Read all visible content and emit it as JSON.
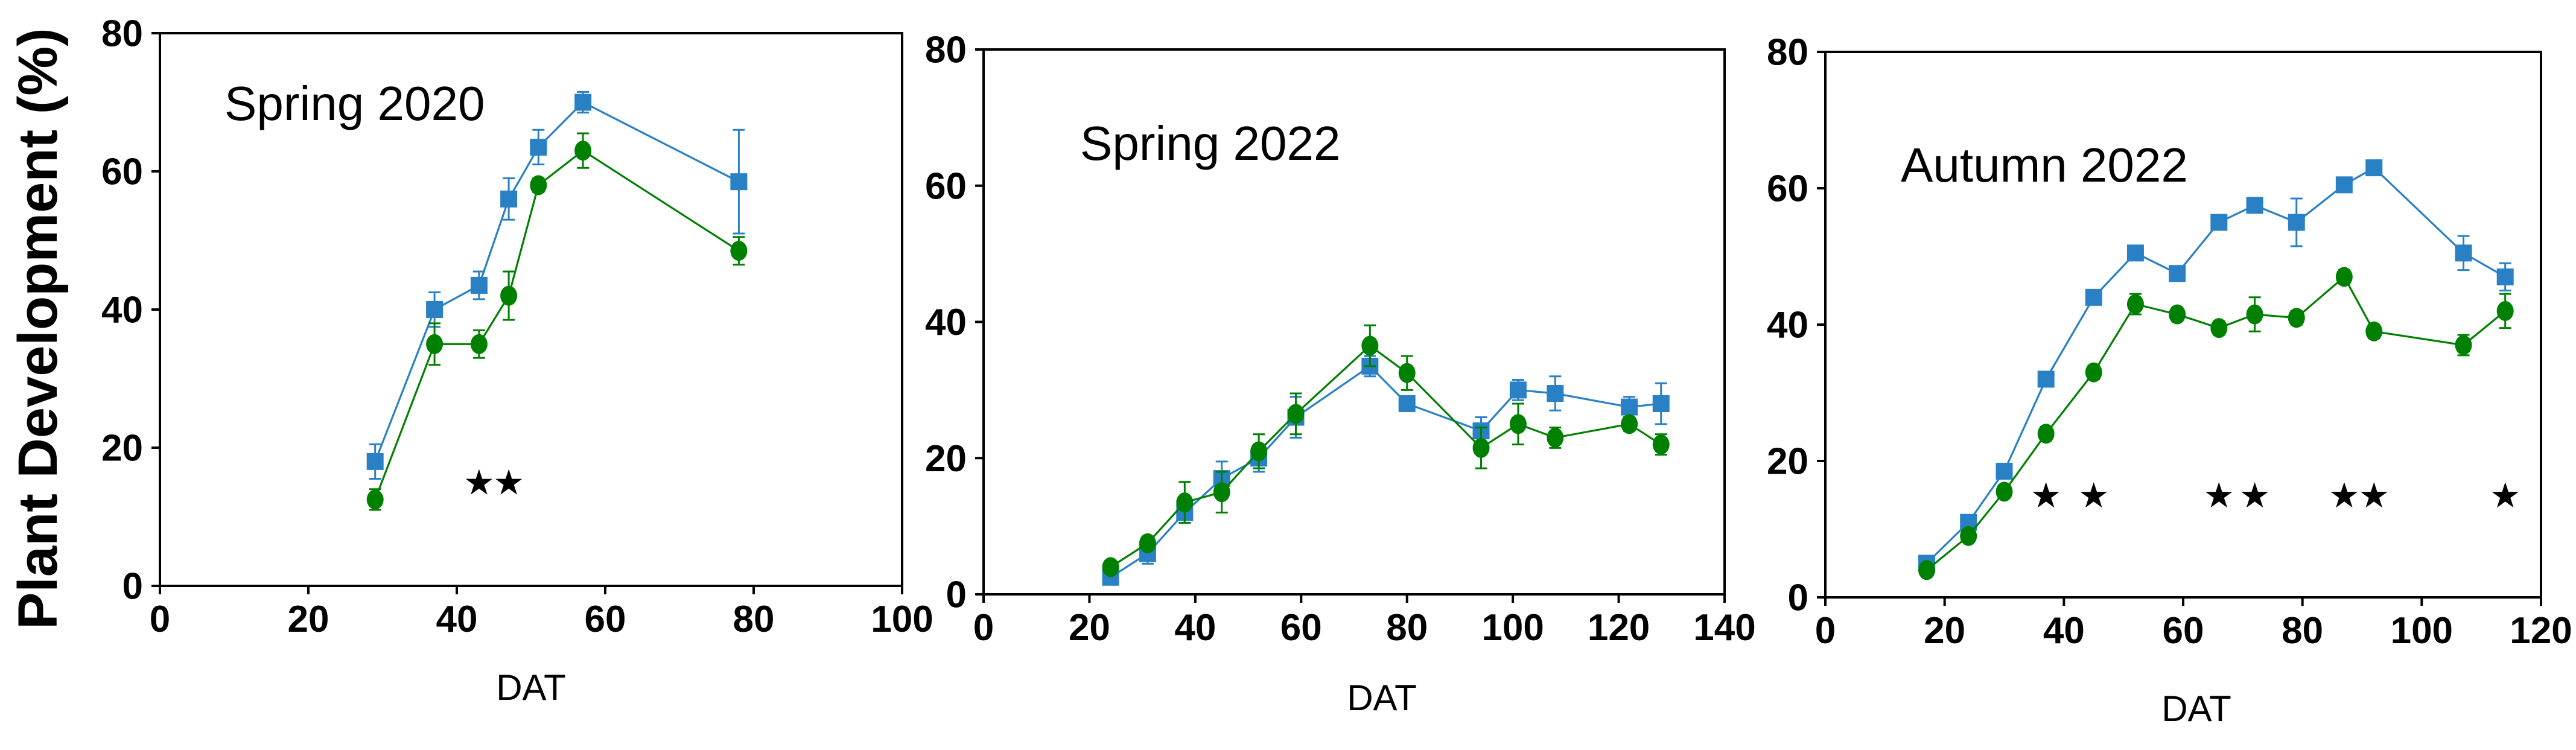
{
  "figure": {
    "y_axis_title": "Plant Development (%)",
    "x_axis_label": "DAT",
    "background_color": "#FFFFFF",
    "axis_color": "#000000",
    "star_symbol": "★",
    "star_color": "#000000",
    "y_ticks": [
      0,
      20,
      40,
      60,
      80
    ],
    "y_range": [
      0,
      80
    ],
    "series_colors": {
      "blue": "#2980C4",
      "green": "#008000"
    }
  },
  "chart_data": [
    {
      "type": "line",
      "title": "Spring 2020",
      "xlabel": "DAT",
      "ylabel": "Plant Development (%)",
      "xlim": [
        0,
        100
      ],
      "ylim": [
        0,
        80
      ],
      "x_ticks": [
        0,
        20,
        40,
        60,
        80,
        100
      ],
      "x": [
        29,
        37,
        43,
        47,
        51,
        57,
        78
      ],
      "series": [
        {
          "name": "blue-squares",
          "marker": "square",
          "color": "#2980C4",
          "values": [
            18,
            40,
            43.5,
            56,
            63.5,
            70,
            58.5
          ],
          "errors": [
            2.5,
            2.5,
            2,
            3,
            2.5,
            1.5,
            7.5
          ]
        },
        {
          "name": "green-circles",
          "marker": "circle",
          "color": "#008000",
          "values": [
            12.5,
            35,
            35,
            42,
            58,
            63,
            48.5
          ],
          "errors": [
            1.5,
            3,
            2,
            3.5,
            1,
            2.5,
            2
          ]
        }
      ],
      "significance_stars": {
        "x_positions": [
          43,
          47
        ],
        "y_position": 15
      }
    },
    {
      "type": "line",
      "title": "Spring 2022",
      "xlabel": "DAT",
      "ylabel": "Plant Development (%)",
      "xlim": [
        0,
        140
      ],
      "ylim": [
        0,
        80
      ],
      "x_ticks": [
        0,
        20,
        40,
        60,
        80,
        100,
        120,
        140
      ],
      "x": [
        24,
        31,
        38,
        45,
        52,
        59,
        73,
        80,
        94,
        101,
        108,
        122,
        128
      ],
      "series": [
        {
          "name": "blue-squares",
          "marker": "square",
          "color": "#2980C4",
          "values": [
            2.5,
            6,
            12,
            17,
            20,
            26,
            33.5,
            28,
            24,
            30,
            29.5,
            27.5,
            28
          ],
          "errors": [
            0.5,
            1.5,
            1.5,
            2.5,
            2,
            3,
            1.5,
            0.5,
            2,
            1.5,
            2.5,
            1.5,
            3
          ]
        },
        {
          "name": "green-circles",
          "marker": "circle",
          "color": "#008000",
          "values": [
            4,
            7.5,
            13.5,
            15,
            21,
            26.5,
            36.5,
            32.5,
            21.5,
            25,
            23,
            25,
            22
          ],
          "errors": [
            0.5,
            1,
            3,
            3,
            2.5,
            3,
            3,
            2.5,
            3,
            3,
            1.5,
            1,
            1.5
          ]
        }
      ],
      "significance_stars": {
        "x_positions": [],
        "y_position": 15
      }
    },
    {
      "type": "line",
      "title": "Autumn 2022",
      "xlabel": "DAT",
      "ylabel": "Plant Development (%)",
      "xlim": [
        0,
        120
      ],
      "ylim": [
        0,
        80
      ],
      "x_ticks": [
        0,
        20,
        40,
        60,
        80,
        100,
        120
      ],
      "x": [
        17,
        24,
        30,
        37,
        45,
        52,
        59,
        66,
        72,
        79,
        87,
        92,
        107,
        114
      ],
      "series": [
        {
          "name": "blue-squares",
          "marker": "square",
          "color": "#2980C4",
          "values": [
            5,
            11,
            18.5,
            32,
            44,
            50.5,
            47.5,
            55,
            57.5,
            55,
            60.5,
            63,
            50.5,
            47
          ],
          "errors": [
            0.5,
            0.5,
            0.5,
            1,
            1,
            1,
            1,
            1,
            1,
            3.5,
            1,
            0.5,
            2.5,
            2
          ]
        },
        {
          "name": "green-circles",
          "marker": "circle",
          "color": "#008000",
          "values": [
            4,
            9,
            15.5,
            24,
            33,
            43,
            41.5,
            39.5,
            41.5,
            41,
            47,
            39,
            37,
            42
          ],
          "errors": [
            0.5,
            0.5,
            0.5,
            1,
            1,
            1.5,
            1,
            1,
            2.5,
            1,
            1,
            1,
            1.5,
            2.5
          ]
        }
      ],
      "significance_stars": {
        "x_positions": [
          37,
          45,
          66,
          72,
          87,
          92,
          114
        ],
        "y_position": 15
      }
    }
  ]
}
